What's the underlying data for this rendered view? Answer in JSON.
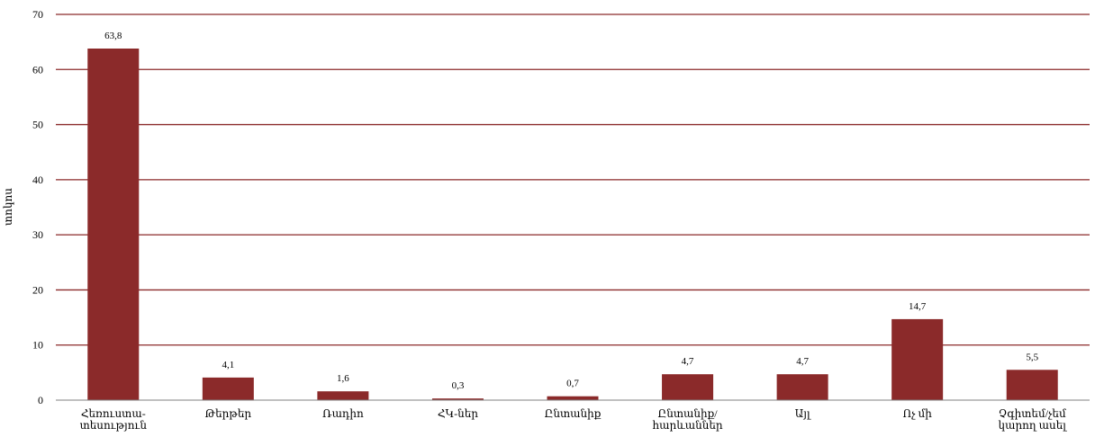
{
  "chart_data": {
    "type": "bar",
    "ylabel": "տոկոս",
    "xlabel": "",
    "ylim": [
      0,
      70
    ],
    "yticks": [
      0,
      10,
      20,
      30,
      40,
      50,
      60,
      70
    ],
    "grid": true,
    "legend": "none",
    "bar_color": "#8B2A2A",
    "grid_color": "#8B2A2A",
    "categories": [
      "Հեռուստա-\nտեսություն",
      "Թերթեր",
      "Ռադիո",
      "ՀԿ-ներ",
      "Ընտանիք",
      "Ընտանիք/\nհարևաններ",
      "Այլ",
      "Ոչ մի",
      "Չգիտեմ/չեմ\nկարող ասել"
    ],
    "values": [
      63.8,
      4.1,
      1.6,
      0.3,
      0.7,
      4.7,
      4.7,
      14.7,
      5.5
    ],
    "value_labels": [
      "63,8",
      "4,1",
      "1,6",
      "0,3",
      "0,7",
      "4,7",
      "4,7",
      "14,7",
      "5,5"
    ]
  }
}
